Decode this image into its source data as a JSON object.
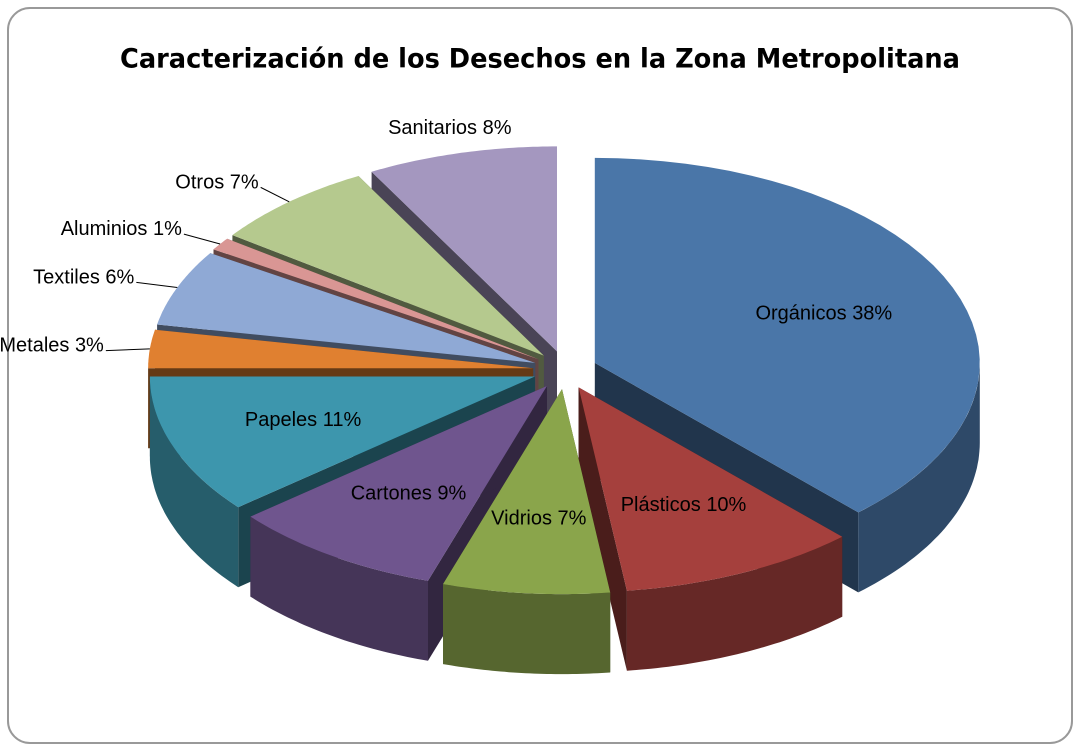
{
  "chart_data": {
    "type": "pie3d",
    "title": "Caracterización de los Desechos en la Zona Metropolitana",
    "categories": [
      "Orgánicos",
      "Plásticos",
      "Vidrios",
      "Cartones",
      "Papeles",
      "Metales",
      "Textiles",
      "Aluminios",
      "Otros",
      "Sanitarios"
    ],
    "values": [
      38,
      10,
      7,
      9,
      11,
      3,
      6,
      1,
      7,
      8
    ],
    "value_labels": [
      "38%",
      "10%",
      "7%",
      "9%",
      "11%",
      "3%",
      "6%",
      "1%",
      "7%",
      "8%"
    ],
    "colors": [
      "#4a76a8",
      "#a5403d",
      "#8aa54b",
      "#6f558e",
      "#3d96ad",
      "#e08030",
      "#8fa9d5",
      "#d99694",
      "#b5c98e",
      "#a497bf"
    ]
  }
}
